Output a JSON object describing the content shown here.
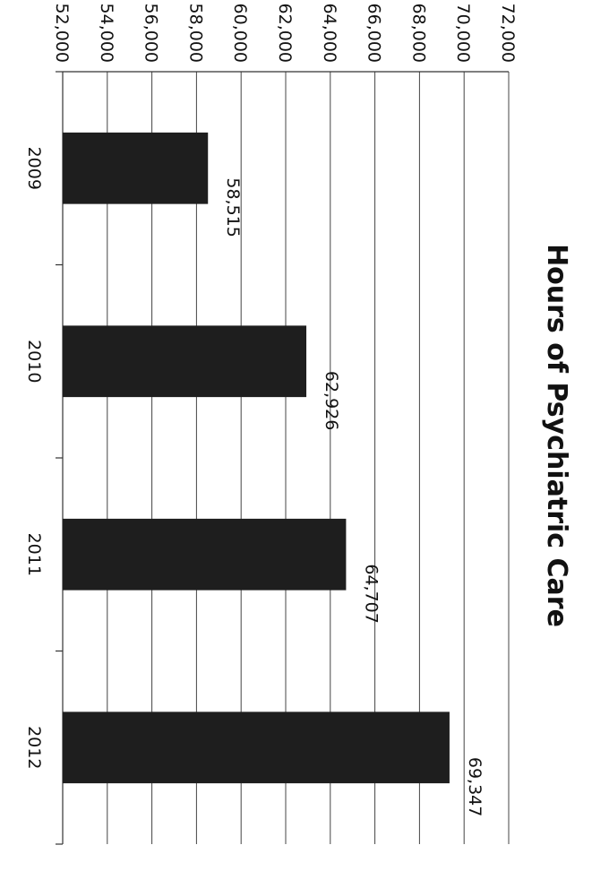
{
  "chart_data": {
    "type": "bar",
    "title": "Hours of Psychiatric Care",
    "categories": [
      "2009",
      "2010",
      "2011",
      "2012"
    ],
    "values": [
      58515,
      62926,
      64707,
      69347
    ],
    "data_labels": [
      "58,515",
      "62,926",
      "64,707",
      "69,347"
    ],
    "ylim": [
      52000,
      72000
    ],
    "yticks": [
      52000,
      54000,
      56000,
      58000,
      60000,
      62000,
      64000,
      66000,
      68000,
      70000,
      72000
    ],
    "ytick_labels": [
      "52,000",
      "54,000",
      "56,000",
      "58,000",
      "60,000",
      "62,000",
      "64,000",
      "66,000",
      "68,000",
      "70,000",
      "72,000"
    ],
    "grid": true,
    "xlabel": "",
    "ylabel": "",
    "bar_color": "#1e1e1e",
    "orientation": "page rotated 90 degrees clockwise"
  }
}
